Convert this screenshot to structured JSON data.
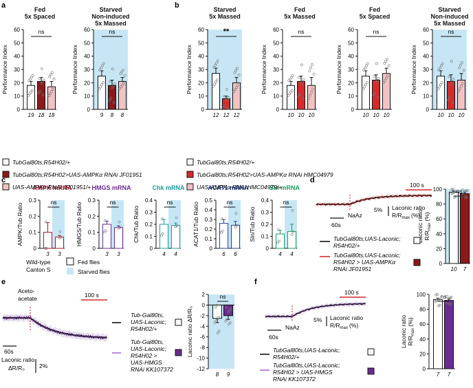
{
  "colors": {
    "dark_red": "#8b1a1a",
    "red": "#d42a2a",
    "pink": "#f2c3c3",
    "blue_shade": "#c6e6f5",
    "purple": "#6b2c91",
    "light_purple": "#c9a8e0",
    "teal": "#1a9c9c",
    "navy": "#2a3f8f",
    "green": "#1e9e5a",
    "ampk_red": "#b0132a"
  },
  "panel_letters": {
    "a": "a",
    "b": "b",
    "c": "c",
    "d": "d",
    "e": "e",
    "f": "f"
  },
  "chart_data": [
    {
      "id": "a1",
      "type": "bar",
      "title": "Fed\n5x Spaced",
      "ylabel": "Performance Index",
      "ylim": [
        0,
        60
      ],
      "yticks": [
        0,
        10,
        20,
        30,
        40,
        50,
        60
      ],
      "values": [
        18,
        21,
        17
      ],
      "errors": [
        3,
        3,
        4
      ],
      "n": [
        "19",
        "18",
        "18"
      ],
      "sig": "ns",
      "fills": [
        "#ffffff",
        "#8b1a1a",
        "#f2c3c3"
      ],
      "shaded": false
    },
    {
      "id": "a2",
      "type": "bar",
      "title": "Starved\nNon-induced\n5x Massed",
      "ylabel": "Performance Index",
      "ylim": [
        0,
        60
      ],
      "yticks": [
        0,
        10,
        20,
        30,
        40,
        50,
        60
      ],
      "values": [
        25,
        18,
        21
      ],
      "errors": [
        4,
        4,
        3
      ],
      "n": [
        "9",
        "8",
        "8"
      ],
      "sig": "ns",
      "fills": [
        "#ffffff",
        "#8b1a1a",
        "#f2c3c3"
      ],
      "shaded": true
    },
    {
      "id": "b1",
      "type": "bar",
      "title": "Starved\n5x Massed",
      "ylabel": "Performance Index",
      "ylim": [
        0,
        60
      ],
      "yticks": [
        0,
        10,
        20,
        30,
        40,
        50,
        60
      ],
      "values": [
        27,
        8,
        20
      ],
      "errors": [
        4,
        2,
        4
      ],
      "n": [
        "12",
        "12",
        "12"
      ],
      "sig": "**",
      "fills": [
        "#ffffff",
        "#d42a2a",
        "#f2c3c3"
      ],
      "shaded": true
    },
    {
      "id": "b2",
      "type": "bar",
      "title": "Fed\n5x Massed",
      "ylabel": "Performance Index",
      "ylim": [
        0,
        60
      ],
      "yticks": [
        0,
        10,
        20,
        30,
        40,
        50,
        60
      ],
      "values": [
        18,
        21,
        18
      ],
      "errors": [
        3,
        4,
        6
      ],
      "n": [
        "10",
        "10",
        "10"
      ],
      "sig": "ns",
      "fills": [
        "#ffffff",
        "#d42a2a",
        "#f2c3c3"
      ],
      "shaded": false
    },
    {
      "id": "b3",
      "type": "bar",
      "title": "Fed\n5x Spaced",
      "ylabel": "Performance Index",
      "ylim": [
        0,
        60
      ],
      "yticks": [
        0,
        10,
        20,
        30,
        40,
        50,
        60
      ],
      "values": [
        25,
        22,
        27
      ],
      "errors": [
        4,
        4,
        4
      ],
      "n": [
        "10",
        "10",
        "10"
      ],
      "sig": "ns",
      "fills": [
        "#ffffff",
        "#d42a2a",
        "#f2c3c3"
      ],
      "shaded": false
    },
    {
      "id": "b4",
      "type": "bar",
      "title": "Starved\nNon-induced\n5x Massed",
      "ylabel": "Performance Index",
      "ylim": [
        0,
        60
      ],
      "yticks": [
        0,
        10,
        20,
        30,
        40,
        50,
        60
      ],
      "values": [
        25,
        21,
        22
      ],
      "errors": [
        4,
        5,
        5
      ],
      "n": [
        "10",
        "10",
        "10"
      ],
      "sig": "ns",
      "fills": [
        "#ffffff",
        "#d42a2a",
        "#f2c3c3"
      ],
      "shaded": true
    },
    {
      "id": "c1",
      "type": "bar",
      "title": "AMPK mRNA",
      "title_color": "#b0132a",
      "ylabel": "AMPK/Tub Ratio",
      "ylim": [
        0,
        0.3
      ],
      "yticks": [
        0,
        0.1,
        0.2,
        0.3
      ],
      "ytick_labels": [
        "0",
        "0.1",
        "0.2",
        "0.3"
      ],
      "values": [
        0.1,
        0.07
      ],
      "errors": [
        0.06,
        0.01
      ],
      "n": [
        "3",
        "3"
      ],
      "sig": "ns",
      "fills": [
        "#ffffff",
        "#ffffff"
      ],
      "stroke": "#b0132a",
      "shaded": true
    },
    {
      "id": "c2",
      "type": "bar",
      "title": "HMGS mRNA",
      "title_color": "#6b2c91",
      "ylabel": "HMGS/Tub Ratio",
      "ylim": [
        0,
        0.3
      ],
      "yticks": [
        0,
        0.1,
        0.2,
        0.3
      ],
      "ytick_labels": [
        "0",
        "0.1",
        "0.2",
        "0.3"
      ],
      "values": [
        0.15,
        0.13
      ],
      "errors": [
        0.02,
        0.01
      ],
      "n": [
        "3",
        "3"
      ],
      "sig": "ns",
      "fills": [
        "#ffffff",
        "#ffffff"
      ],
      "stroke": "#6b2c91",
      "shaded": true
    },
    {
      "id": "c3",
      "type": "bar",
      "title": "Chk mRNA",
      "title_color": "#1a9c9c",
      "ylabel": "Chk/Tub Ratio",
      "ylim": [
        0,
        0.4
      ],
      "yticks": [
        0,
        0.1,
        0.2,
        0.3,
        0.4
      ],
      "ytick_labels": [
        "0",
        "0.1",
        "0.2",
        "0.3",
        "0.4"
      ],
      "values": [
        0.2,
        0.19
      ],
      "errors": [
        0.04,
        0.02
      ],
      "n": [
        "4",
        "4"
      ],
      "sig": "ns",
      "fills": [
        "#ffffff",
        "#ffffff"
      ],
      "stroke": "#1a9c9c",
      "shaded": true
    },
    {
      "id": "c4",
      "type": "bar",
      "title": "ACAT1 mRNA",
      "title_color": "#2a3f8f",
      "ylabel": "ACAT1/Tub Ratio",
      "ylim": [
        0,
        0.5
      ],
      "yticks": [
        0,
        0.1,
        0.2,
        0.3,
        0.4,
        0.5
      ],
      "ytick_labels": [
        "0",
        "0.1",
        "0.2",
        "0.3",
        "0.4",
        "0.5"
      ],
      "values": [
        0.26,
        0.24
      ],
      "errors": [
        0.04,
        0.04
      ],
      "n": [
        "6",
        "6"
      ],
      "sig": "ns",
      "fills": [
        "#ffffff",
        "#ffffff"
      ],
      "stroke": "#2a3f8f",
      "shaded": true
    },
    {
      "id": "c5",
      "type": "bar",
      "title": "Sln mRNA",
      "title_color": "#1e9e5a",
      "ylabel": "Sln/Tub Ratio",
      "ylim": [
        0,
        0.4
      ],
      "yticks": [
        0,
        0.1,
        0.2,
        0.3,
        0.4
      ],
      "ytick_labels": [
        "0",
        "0.1",
        "0.2",
        "0.3",
        "0.4"
      ],
      "values": [
        0.12,
        0.14
      ],
      "errors": [
        0.03,
        0.06
      ],
      "n": [
        "4",
        "4"
      ],
      "sig": "ns",
      "fills": [
        "#ffffff",
        "#ffffff"
      ],
      "stroke": "#1e9e5a",
      "shaded": true
    },
    {
      "id": "d_bar",
      "type": "bar",
      "title": "",
      "ylabel": "Laconic ratio\nR/R_max (%)",
      "ylim": [
        0,
        100
      ],
      "yticks": [
        0,
        20,
        40,
        60,
        80,
        100
      ],
      "values": [
        96,
        94
      ],
      "errors": [
        1.5,
        2
      ],
      "n": [
        "10",
        "7"
      ],
      "sig": "ns",
      "fills": [
        "#ffffff",
        "#8b1a1a"
      ],
      "shaded": true
    },
    {
      "id": "e_bar",
      "type": "bar",
      "title": "",
      "ylabel": "Laconic ratio ΔR/R₀",
      "ylim": [
        -12,
        2
      ],
      "yticks": [
        -12,
        -10,
        -8,
        -6,
        -4,
        -2,
        0,
        2
      ],
      "values": [
        -2.5,
        -2
      ],
      "errors": [
        0.8,
        0.7
      ],
      "n": [
        "8",
        "9"
      ],
      "sig": "ns",
      "fills": [
        "#ffffff",
        "#6b2c91"
      ],
      "shaded": true,
      "zero_line": true
    },
    {
      "id": "f_bar",
      "type": "bar",
      "title": "",
      "ylabel": "Laconic ratio\nR/R_max (%)",
      "ylim": [
        0,
        100
      ],
      "yticks": [
        0,
        20,
        40,
        60,
        80,
        100
      ],
      "values": [
        93,
        92
      ],
      "errors": [
        2,
        2
      ],
      "n": [
        "7",
        "7"
      ],
      "sig": "ns",
      "fills": [
        "#ffffff",
        "#6b2c91"
      ],
      "shaded": false
    }
  ],
  "legend_a": [
    {
      "text": "TubGal80ts;R54H02/+",
      "fill": "#ffffff"
    },
    {
      "text": "TubGal80ts;R54H02>UAS-AMPKα RNAi JF01951",
      "fill": "#8b1a1a"
    },
    {
      "text": "UAS-AMPKα RNAi JF01951/+",
      "fill": "#f2c3c3"
    }
  ],
  "legend_b": [
    {
      "text": "TubGal80ts;R54H02/+",
      "fill": "#ffffff"
    },
    {
      "text": "TubGal80ts;R54H02>UAS-AMPKα RNAi HMC04979",
      "fill": "#d42a2a"
    },
    {
      "text": "UAS-AMPKα RNAi HMC04979/+",
      "fill": "#f2c3c3"
    }
  ],
  "legend_c": {
    "wildtype_line1": "Wild-type",
    "wildtype_line2": "Canton S",
    "fed_label": "Fed flies",
    "starved_label": "Starved flies"
  },
  "trace_d": {
    "scale_time": "100 s",
    "scale_60": "60s",
    "drug": "NaAz",
    "scale_pct": "5%",
    "ylabel_line1": "Laconic ratio",
    "ylabel_line2": "R/R",
    "ylabel_sub": "max",
    "ylabel_unit": "(%)",
    "legend": [
      {
        "line1": "TubGal80ts;UAS-Laconic;",
        "line2": "R54H02/+",
        "line3": "",
        "color": "#111111",
        "box": "#ffffff"
      },
      {
        "line1": "TubGal80ts;UAS-Laconic;",
        "line2": "R54H02 > UAS-AMPKα",
        "line3": "RNAi JF01951",
        "color": "#d42a2a",
        "box": "#8b1a1a"
      }
    ]
  },
  "trace_e": {
    "drug_line1": "Aceto-",
    "drug_line2": "acetate",
    "scale_time": "100 s",
    "scale_60": "60s",
    "ylabel_line1": "Laconic ratio",
    "ylabel_line2": "ΔR/R₀",
    "scale_pct": "2%",
    "legend": [
      {
        "line1": "Tub-Gal80ts,",
        "line2": "UAS-Laconic;",
        "line3": "R54H02/+",
        "line4": "",
        "line5": "",
        "color": "#111111",
        "box": "#ffffff"
      },
      {
        "line1": "Tub-Gal80ts,",
        "line2": "UAS-Laconic;",
        "line3": "R54H02 >",
        "line4": "UAS-HMGS",
        "line5": "RNAi KK107372",
        "color": "#6b2c91",
        "box": "#6b2c91"
      }
    ]
  },
  "trace_f": {
    "scale_time": "100 s",
    "scale_60": "60s",
    "drug": "NaAz",
    "scale_pct": "5%",
    "ylabel_line1": "Laconic ratio",
    "ylabel_line2": "R/R",
    "ylabel_sub": "max",
    "ylabel_unit": "(%)",
    "legend": [
      {
        "line1": "TubGal80ts,UAS-Laconic;",
        "line2": "R54H02/+",
        "line3": "",
        "color": "#111111",
        "box": "#ffffff"
      },
      {
        "line1": "TubGal80ts,UAS-Laconic;",
        "line2": "R54H02 > UAS-HMGS",
        "line3": "RNAi KK107372",
        "color": "#6b2c91",
        "box": "#6b2c91"
      }
    ]
  }
}
